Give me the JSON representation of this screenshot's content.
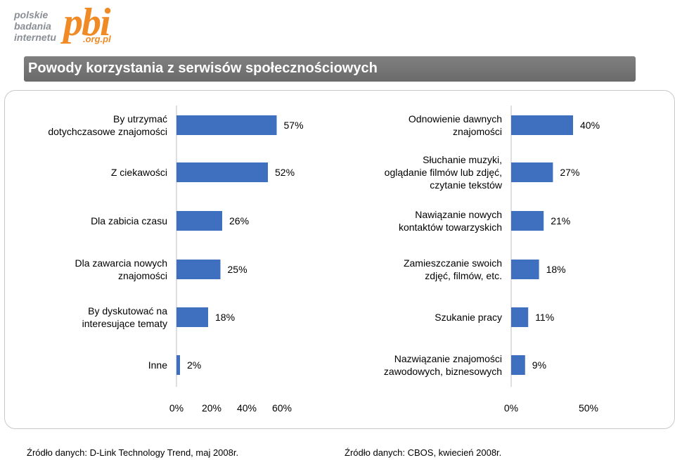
{
  "logo": {
    "line1": "polskie",
    "line2": "badania",
    "line3": "internetu",
    "mark": "pbi",
    "domain": ".org.pl"
  },
  "title": "Powody korzystania z serwisów społecznościowych",
  "chart_data": [
    {
      "type": "bar",
      "orientation": "horizontal",
      "categories": [
        "By utrzymać dotychczasowe znajomości",
        "Z ciekawości",
        "Dla zabicia czasu",
        "Dla zawarcia nowych znajomości",
        "By dyskutować na interesujące tematy",
        "Inne"
      ],
      "values": [
        57,
        52,
        26,
        25,
        18,
        2
      ],
      "value_labels": [
        "57%",
        "52%",
        "26%",
        "25%",
        "18%",
        "2%"
      ],
      "xlim": [
        0,
        60
      ],
      "xticks": [
        "0%",
        "20%",
        "40%",
        "60%"
      ],
      "color": "#3f6fbf",
      "source": "Źródło danych: D-Link Technology Trend, maj 2008r."
    },
    {
      "type": "bar",
      "orientation": "horizontal",
      "categories": [
        "Odnowienie dawnych znajomości",
        "Słuchanie muzyki, oglądanie filmów lub zdjęć, czytanie tekstów",
        "Nawiązanie nowych kontaktów towarzyskich",
        "Zamieszczanie swoich zdjęć, filmów, etc.",
        "Szukanie pracy",
        "Nazwiązanie znajomości zawodowych, biznesowych"
      ],
      "values": [
        40,
        27,
        21,
        18,
        11,
        9
      ],
      "value_labels": [
        "40%",
        "27%",
        "21%",
        "18%",
        "11%",
        "9%"
      ],
      "xlim": [
        0,
        50
      ],
      "xticks": [
        "0%",
        "50%"
      ],
      "color": "#3f6fbf",
      "source": "Źródło danych: CBOS, kwiecień 2008r."
    }
  ],
  "left_label_lines": [
    [
      "By utrzymać",
      "dotychczasowe znajomości"
    ],
    [
      "Z ciekawości"
    ],
    [
      "Dla zabicia czasu"
    ],
    [
      "Dla zawarcia nowych",
      "znajomości"
    ],
    [
      "By dyskutować na",
      "interesujące tematy"
    ],
    [
      "Inne"
    ]
  ],
  "right_label_lines": [
    [
      "Odnowienie dawnych",
      "znajomości"
    ],
    [
      "Słuchanie muzyki,",
      "oglądanie filmów lub zdjęć,",
      "czytanie tekstów"
    ],
    [
      "Nawiązanie nowych",
      "kontaktów towarzyskich"
    ],
    [
      "Zamieszczanie swoich",
      "zdjęć, filmów, etc."
    ],
    [
      "Szukanie pracy"
    ],
    [
      "Nazwiązanie znajomości",
      "zawodowych, biznesowych"
    ]
  ]
}
